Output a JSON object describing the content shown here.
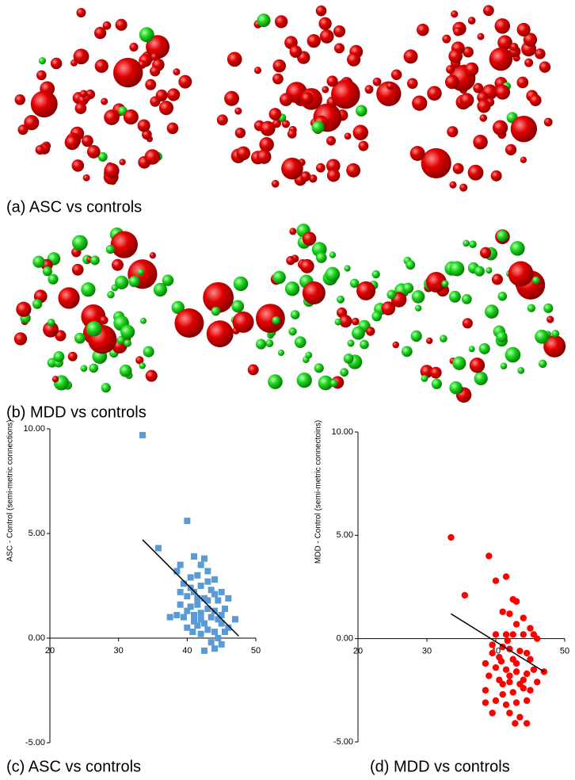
{
  "panels": [
    "(a) ASC vs controls",
    "(b) MDD vs controls"
  ],
  "chart_data": [
    {
      "type": "scatter",
      "title": "(c) ASC vs controls",
      "y_label": "ASC - Control (semi-metric connections)",
      "color": "#5b9bd5",
      "marker": "square",
      "x": [
        33.5,
        40,
        35.8,
        41,
        39,
        38.5,
        42.5,
        41.5,
        43,
        40.5,
        39.5,
        42,
        44,
        43.5,
        41,
        40,
        45,
        46,
        44.5,
        42.5,
        41.5,
        40.5,
        39,
        43,
        44,
        45.5,
        42,
        41,
        39.5,
        37.5,
        38.5,
        43.5,
        44.5,
        45,
        46,
        47,
        42.5,
        41.5,
        40,
        43,
        44,
        45.5,
        42,
        44.5,
        43.5,
        45,
        42.5,
        44,
        41,
        40.5,
        42,
        43,
        44,
        41.5,
        39,
        40,
        43,
        45,
        42,
        40.8
      ],
      "values": [
        9.7,
        5.6,
        4.3,
        3.9,
        3.5,
        3.2,
        3.8,
        3.0,
        3.2,
        2.9,
        2.6,
        2.5,
        2.8,
        2.3,
        2.2,
        2.0,
        2.2,
        1.9,
        1.8,
        1.9,
        1.6,
        1.5,
        1.6,
        1.4,
        1.3,
        1.4,
        1.2,
        1.1,
        1.0,
        1.0,
        1.1,
        1.0,
        0.9,
        0.7,
        0.5,
        0.9,
        0.7,
        0.6,
        0.5,
        0.4,
        0.3,
        0.3,
        0.2,
        0.0,
        -0.2,
        -0.3,
        -0.6,
        -0.5,
        0.8,
        2.4,
        3.5,
        2.7,
        2.1,
        1.9,
        2.2,
        1.3,
        1.8,
        1.1,
        0.9,
        0.3
      ],
      "trendline": {
        "x": [
          33.5,
          47.5
        ],
        "y": [
          4.7,
          0.1
        ]
      },
      "xlim": [
        20,
        50
      ],
      "xticks": [
        20,
        30,
        40,
        50
      ],
      "ylim": [
        -5,
        10
      ],
      "yticks": [
        {
          "value": -5,
          "label": "-5.00"
        },
        {
          "value": 0,
          "label": "0.00"
        },
        {
          "value": 5,
          "label": "5.00"
        },
        {
          "value": 10,
          "label": "10.00"
        }
      ]
    },
    {
      "type": "scatter",
      "title": "(d) MDD vs controls",
      "y_label": "MDD - Control (semi-metric connectoins)",
      "color": "#ff0000",
      "marker": "circle",
      "x": [
        33.5,
        39,
        35.5,
        41.5,
        40,
        42.5,
        43,
        41,
        42,
        44,
        43,
        45,
        40,
        41.5,
        42.5,
        44,
        45.5,
        46,
        39.5,
        41,
        42,
        43.5,
        44.5,
        40.5,
        42.5,
        47,
        38.5,
        40,
        41.5,
        43,
        44.5,
        45.5,
        39,
        40.5,
        42,
        43.5,
        44,
        38.5,
        41,
        42.5,
        45,
        40,
        41.5,
        43,
        44.5,
        39.5,
        42,
        43.5,
        42.8,
        44.5,
        38.5,
        41,
        43,
        45,
        39.5,
        42,
        44,
        40.8,
        46,
        41.7
      ],
      "values": [
        4.9,
        4.0,
        2.1,
        3.0,
        2.8,
        1.9,
        1.8,
        1.3,
        1.2,
        1.0,
        0.7,
        0.5,
        0.2,
        0.2,
        0.2,
        0.2,
        0.2,
        0.0,
        -0.3,
        -0.4,
        -0.5,
        -0.6,
        -0.7,
        -0.9,
        -1.0,
        -1.6,
        -1.2,
        -1.4,
        -1.5,
        -1.6,
        -1.7,
        -1.5,
        -1.8,
        -2.0,
        -2.1,
        -2.2,
        -2.4,
        -2.5,
        -2.7,
        -2.6,
        -2.5,
        -3.0,
        -3.2,
        -3.1,
        -3.0,
        -3.6,
        -3.6,
        -3.8,
        -4.1,
        -4.1,
        -3.1,
        -2.2,
        -1.2,
        -1.0,
        -0.7,
        -1.8,
        -2.0,
        -1.1,
        -2.1,
        -0.1
      ],
      "trendline": {
        "x": [
          33.5,
          47
        ],
        "y": [
          1.2,
          -1.6
        ]
      },
      "xlim": [
        20,
        50
      ],
      "xticks": [
        20,
        30,
        40,
        50
      ],
      "ylim": [
        -5,
        10
      ],
      "yticks": [
        {
          "value": -5,
          "label": "-5.00"
        },
        {
          "value": 0,
          "label": "0.00"
        },
        {
          "value": 5,
          "label": "5.00"
        },
        {
          "value": 10,
          "label": "10.00"
        }
      ]
    }
  ]
}
